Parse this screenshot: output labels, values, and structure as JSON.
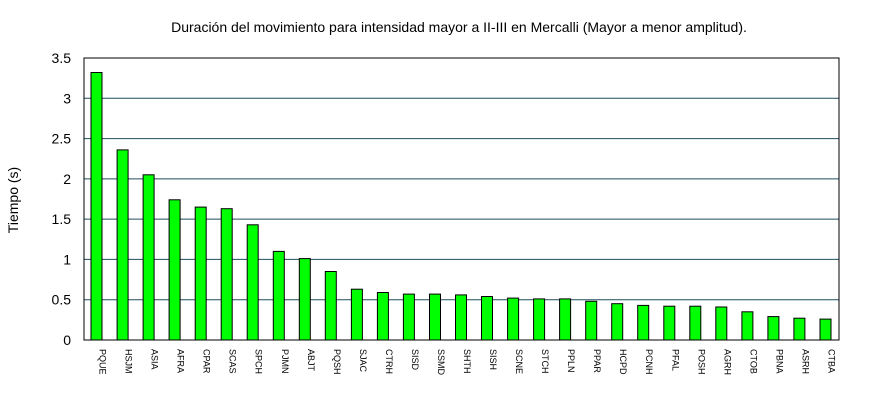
{
  "chart_data": {
    "type": "bar",
    "title": "Duración del movimiento para intensidad mayor a II-III en Mercalli (Mayor a menor amplitud).",
    "xlabel": "",
    "ylabel": "Tiempo (s)",
    "ylim": [
      0,
      3.5
    ],
    "yticks": [
      "0",
      "0.5",
      "1",
      "1.5",
      "2",
      "2.5",
      "3",
      "3.5"
    ],
    "grid": true,
    "legend": "none",
    "bar_color": "#00ff00",
    "categories": [
      "PQUE",
      "HSJM",
      "ASIA",
      "AFRA",
      "CPAR",
      "SCAS",
      "SPCH",
      "PJMN",
      "ABJT",
      "PQSH",
      "SJAC",
      "CTRH",
      "SISD",
      "SSMD",
      "SHTH",
      "SISH",
      "SCNE",
      "STCH",
      "PPLN",
      "PPAR",
      "HCPD",
      "PCNH",
      "PFAL",
      "POSH",
      "AGRH",
      "CTOB",
      "PBNA",
      "ASRH",
      "CTBA"
    ],
    "values": [
      3.32,
      2.36,
      2.05,
      1.74,
      1.65,
      1.63,
      1.43,
      1.1,
      1.01,
      0.85,
      0.63,
      0.59,
      0.57,
      0.57,
      0.56,
      0.54,
      0.52,
      0.51,
      0.51,
      0.48,
      0.45,
      0.43,
      0.42,
      0.42,
      0.41,
      0.35,
      0.29,
      0.27,
      0.26
    ]
  }
}
